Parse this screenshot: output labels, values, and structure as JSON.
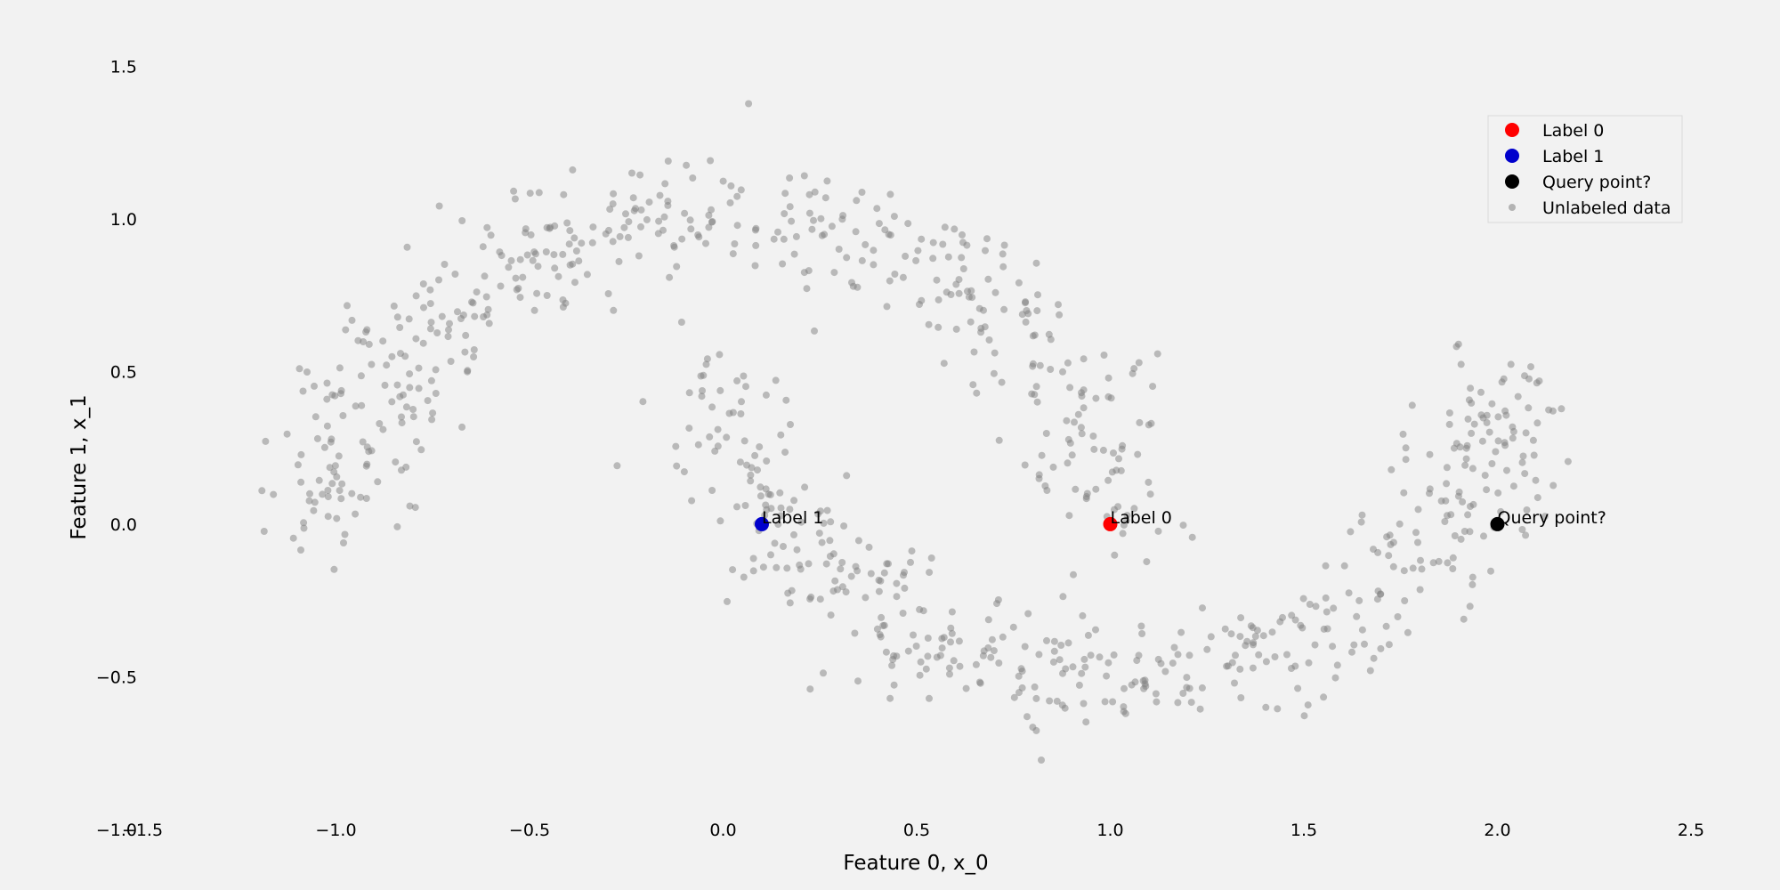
{
  "chart_data": {
    "type": "scatter",
    "title": "",
    "xlabel": "Feature 0, x_0",
    "ylabel": "Feature 1, x_1",
    "xlim": [
      -1.5,
      2.5
    ],
    "ylim": [
      -1.0,
      1.6
    ],
    "x_ticks": [
      -1.5,
      -1.0,
      -0.5,
      0.0,
      0.5,
      1.0,
      1.5,
      2.0,
      2.5
    ],
    "x_tick_labels": [
      "−1.5",
      "−1.0",
      "−0.5",
      "0.0",
      "0.5",
      "1.0",
      "1.5",
      "2.0",
      "2.5"
    ],
    "y_ticks": [
      -1.0,
      -0.5,
      0.0,
      0.5,
      1.0,
      1.5
    ],
    "y_tick_labels": [
      "−1.0",
      "−0.5",
      "0.0",
      "0.5",
      "1.0",
      "1.5"
    ],
    "grid": false,
    "legend_position": "top-right",
    "series": [
      {
        "name": "Label 0",
        "color": "#ff0000",
        "marker": "large-circle",
        "points": [
          [
            1.0,
            0.0
          ]
        ],
        "annotation": "Label 0"
      },
      {
        "name": "Label 1",
        "color": "#0000cc",
        "marker": "large-circle",
        "points": [
          [
            0.1,
            0.0
          ]
        ],
        "annotation": "Label 1"
      },
      {
        "name": "Query point?",
        "color": "#000000",
        "marker": "large-circle",
        "points": [
          [
            2.0,
            0.0
          ]
        ],
        "annotation": "Query point?"
      },
      {
        "name": "Unlabeled data",
        "color": "#808080",
        "marker": "small-circle-translucent",
        "description": "two interleaving half-moons, noise ~0.1",
        "upper_moon": {
          "center": [
            0.0,
            0.0
          ],
          "radius": 1.0,
          "angle_range_deg": [
            0,
            180
          ]
        },
        "lower_moon": {
          "center": [
            1.0,
            0.5
          ],
          "radius": 1.0,
          "angle_range_deg": [
            180,
            360
          ]
        },
        "points_per_moon": 480
      }
    ]
  }
}
